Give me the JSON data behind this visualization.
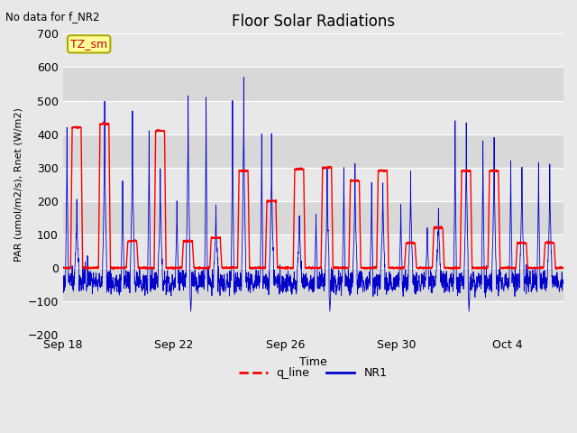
{
  "title": "Floor Solar Radiations",
  "xlabel": "Time",
  "ylabel": "PAR (umol/m2/s), Rnet (W/m2)",
  "top_left_text": "No data for f_NR2",
  "annotation_box": "TZ_sm",
  "ylim": [
    -200,
    700
  ],
  "yticks": [
    -200,
    -100,
    0,
    100,
    200,
    300,
    400,
    500,
    600,
    700
  ],
  "fig_bg_color": "#e8e8e8",
  "plot_bg_color": "#dcdcdc",
  "legend_entries": [
    "q_line",
    "NR1"
  ],
  "legend_colors": [
    "#ff0000",
    "#0000ff"
  ],
  "x_tick_labels": [
    "Sep 18",
    "Sep 22",
    "Sep 26",
    "Sep 30",
    "Oct 4"
  ],
  "x_tick_positions": [
    0,
    4,
    8,
    12,
    16
  ],
  "total_days": 18,
  "seed": 42,
  "q_peaks": [
    420,
    430,
    80,
    410,
    80,
    90,
    290,
    200,
    295,
    300,
    260,
    290,
    75,
    120,
    290,
    290,
    75,
    75
  ],
  "nr1_peaks": [
    200,
    500,
    465,
    300,
    520,
    190,
    570,
    390,
    160,
    295,
    310,
    255,
    290,
    190,
    440,
    380,
    320,
    310
  ],
  "nr1_extra_spikes": [
    [
      0.15,
      420
    ],
    [
      0.85,
      200
    ],
    [
      2.15,
      260
    ],
    [
      2.5,
      300
    ],
    [
      3.1,
      410
    ],
    [
      3.5,
      240
    ],
    [
      4.1,
      200
    ],
    [
      5.15,
      510
    ],
    [
      5.5,
      200
    ],
    [
      6.1,
      500
    ],
    [
      6.5,
      390
    ],
    [
      7.15,
      400
    ],
    [
      8.5,
      170
    ],
    [
      9.1,
      160
    ],
    [
      10.1,
      300
    ],
    [
      10.5,
      300
    ],
    [
      11.1,
      255
    ],
    [
      11.5,
      260
    ],
    [
      12.15,
      190
    ],
    [
      13.1,
      120
    ],
    [
      14.1,
      440
    ],
    [
      15.1,
      380
    ],
    [
      15.5,
      260
    ],
    [
      16.1,
      320
    ],
    [
      17.1,
      315
    ]
  ],
  "night_level": -40,
  "night_noise": 15,
  "figsize": [
    6.4,
    4.8
  ],
  "dpi": 100
}
